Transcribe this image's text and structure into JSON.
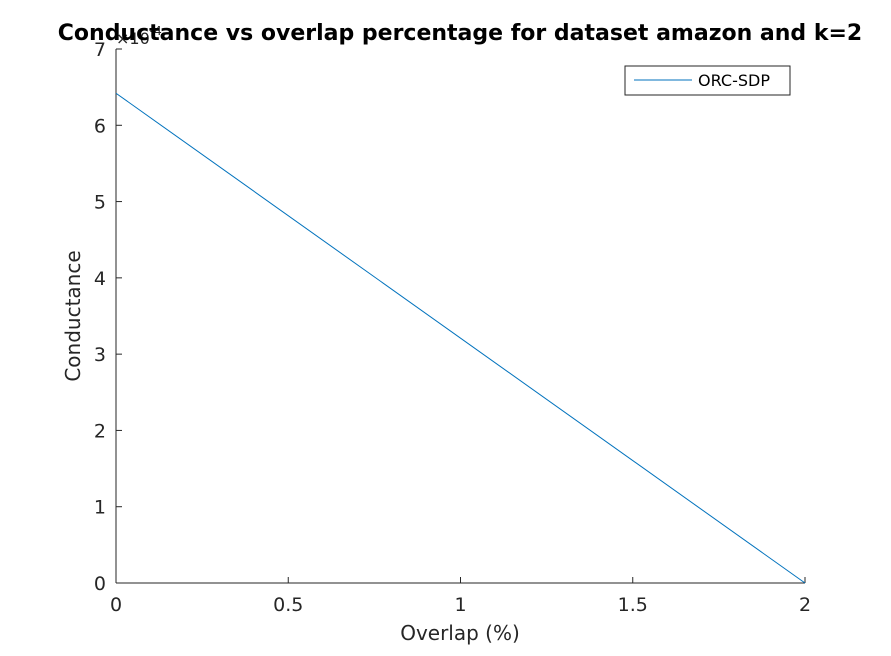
{
  "chart_data": {
    "type": "line",
    "title": "Conductance vs overlap percentage for dataset amazon and k=2",
    "xlabel": "Overlap (%)",
    "ylabel": "Conductance",
    "xlim": [
      0,
      2
    ],
    "ylim": [
      0,
      7
    ],
    "x_ticks": [
      "0",
      "0.5",
      "1",
      "1.5",
      "2"
    ],
    "y_ticks": [
      "0",
      "1",
      "2",
      "3",
      "4",
      "5",
      "6",
      "7"
    ],
    "y_exponent": {
      "base": "×10",
      "power": "-4"
    },
    "legend_position": "top-right",
    "grid": false,
    "series": [
      {
        "name": "ORC-SDP",
        "color": "#0072bd",
        "x": [
          0,
          2
        ],
        "y": [
          6.42,
          0
        ]
      }
    ]
  }
}
